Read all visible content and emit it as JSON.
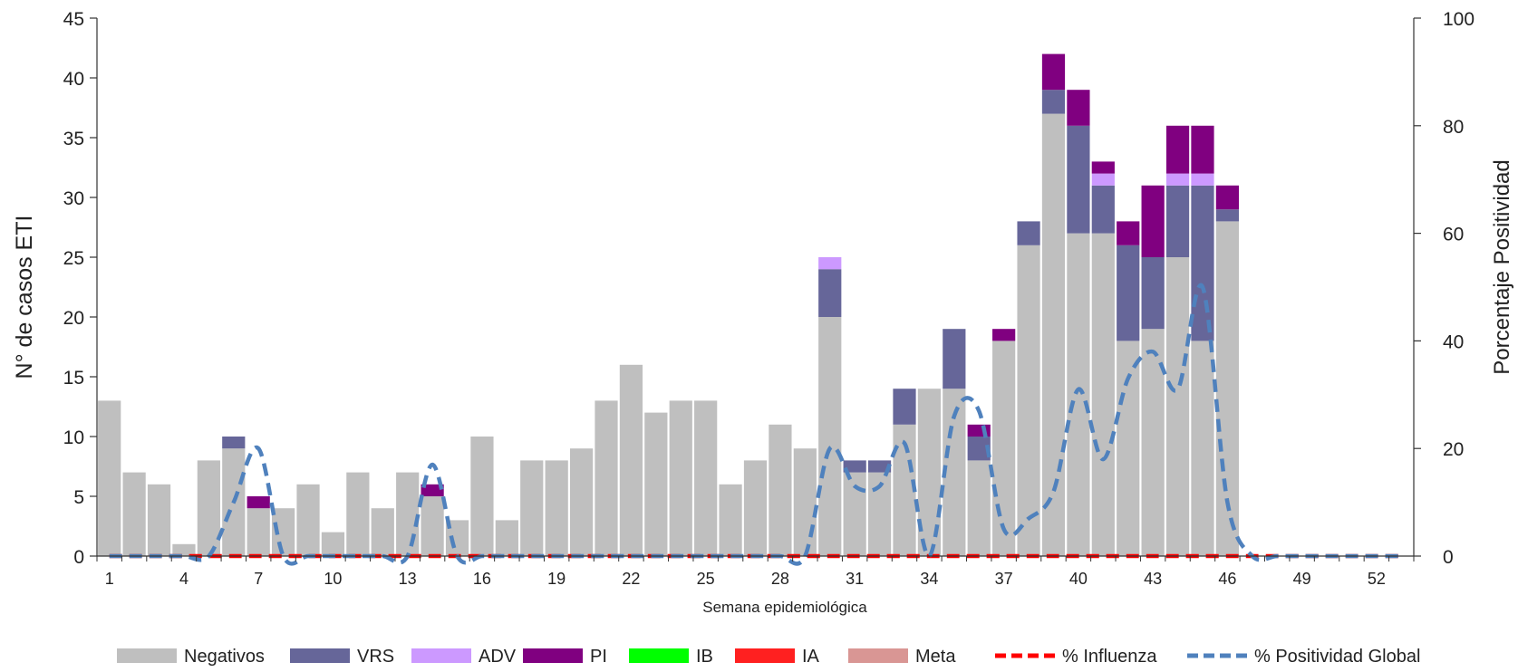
{
  "chart_data": {
    "type": "bar",
    "stacked": true,
    "x": [
      1,
      2,
      3,
      4,
      5,
      6,
      7,
      8,
      9,
      10,
      11,
      12,
      13,
      14,
      15,
      16,
      17,
      18,
      19,
      20,
      21,
      22,
      23,
      24,
      25,
      26,
      27,
      28,
      29,
      30,
      31,
      32,
      33,
      34,
      35,
      36,
      37,
      38,
      39,
      40,
      41,
      42,
      43,
      44,
      45,
      46,
      47,
      48,
      49,
      50,
      51,
      52,
      53
    ],
    "x_tick_labels": [
      "1",
      "4",
      "7",
      "10",
      "13",
      "16",
      "19",
      "22",
      "25",
      "28",
      "31",
      "34",
      "37",
      "40",
      "43",
      "46",
      "49",
      "52"
    ],
    "xlabel": "Semana epidemiológica",
    "ylabel_left": "N° de casos ETI",
    "ylabel_right": "Porcentaje  Positividad",
    "ylim_left": [
      0,
      45
    ],
    "ylim_right": [
      0,
      100
    ],
    "y_ticks_left": [
      "0",
      "5",
      "10",
      "15",
      "20",
      "25",
      "30",
      "35",
      "40",
      "45"
    ],
    "y_ticks_right": [
      "0",
      "20",
      "40",
      "60",
      "80",
      "100"
    ],
    "grid": false,
    "legend_position": "bottom",
    "series": [
      {
        "name": "Negativos",
        "kind": "bar",
        "color": "#bfbfbf",
        "values": [
          13,
          7,
          6,
          1,
          8,
          9,
          4,
          4,
          6,
          2,
          7,
          4,
          7,
          5,
          3,
          10,
          3,
          8,
          8,
          9,
          13,
          16,
          12,
          13,
          13,
          6,
          8,
          11,
          9,
          20,
          7,
          7,
          11,
          14,
          14,
          8,
          18,
          26,
          37,
          27,
          27,
          18,
          19,
          25,
          18,
          28,
          0,
          0,
          0,
          0,
          0,
          0,
          0
        ]
      },
      {
        "name": "VRS",
        "kind": "bar",
        "color": "#666699",
        "values": [
          0,
          0,
          0,
          0,
          0,
          1,
          0,
          0,
          0,
          0,
          0,
          0,
          0,
          0,
          0,
          0,
          0,
          0,
          0,
          0,
          0,
          0,
          0,
          0,
          0,
          0,
          0,
          0,
          0,
          4,
          1,
          1,
          3,
          0,
          5,
          2,
          0,
          2,
          2,
          9,
          4,
          8,
          6,
          6,
          13,
          1,
          0,
          0,
          0,
          0,
          0,
          0,
          0
        ]
      },
      {
        "name": "ADV",
        "kind": "bar",
        "color": "#cc99ff",
        "values": [
          0,
          0,
          0,
          0,
          0,
          0,
          0,
          0,
          0,
          0,
          0,
          0,
          0,
          0,
          0,
          0,
          0,
          0,
          0,
          0,
          0,
          0,
          0,
          0,
          0,
          0,
          0,
          0,
          0,
          1,
          0,
          0,
          0,
          0,
          0,
          0,
          0,
          0,
          0,
          0,
          1,
          0,
          0,
          1,
          1,
          0,
          0,
          0,
          0,
          0,
          0,
          0,
          0
        ]
      },
      {
        "name": "PI",
        "kind": "bar",
        "color": "#800080",
        "values": [
          0,
          0,
          0,
          0,
          0,
          0,
          1,
          0,
          0,
          0,
          0,
          0,
          0,
          1,
          0,
          0,
          0,
          0,
          0,
          0,
          0,
          0,
          0,
          0,
          0,
          0,
          0,
          0,
          0,
          0,
          0,
          0,
          0,
          0,
          0,
          1,
          1,
          0,
          3,
          3,
          1,
          2,
          6,
          4,
          4,
          2,
          0,
          0,
          0,
          0,
          0,
          0,
          0
        ]
      },
      {
        "name": "IB",
        "kind": "bar",
        "color": "#00ff00",
        "values": [
          0,
          0,
          0,
          0,
          0,
          0,
          0,
          0,
          0,
          0,
          0,
          0,
          0,
          0,
          0,
          0,
          0,
          0,
          0,
          0,
          0,
          0,
          0,
          0,
          0,
          0,
          0,
          0,
          0,
          0,
          0,
          0,
          0,
          0,
          0,
          0,
          0,
          0,
          0,
          0,
          0,
          0,
          0,
          0,
          0,
          0,
          0,
          0,
          0,
          0,
          0,
          0,
          0
        ]
      },
      {
        "name": "IA",
        "kind": "bar",
        "color": "#ff2020",
        "values": [
          0,
          0,
          0,
          0,
          0,
          0,
          0,
          0,
          0,
          0,
          0,
          0,
          0,
          0,
          0,
          0,
          0,
          0,
          0,
          0,
          0,
          0,
          0,
          0,
          0,
          0,
          0,
          0,
          0,
          0,
          0,
          0,
          0,
          0,
          0,
          0,
          0,
          0,
          0,
          0,
          0,
          0,
          0,
          0,
          0,
          0,
          0,
          0,
          0,
          0,
          0,
          0,
          0
        ]
      },
      {
        "name": "Meta",
        "kind": "bar",
        "color": "#d99694",
        "values": [
          0,
          0,
          0,
          0,
          0,
          0,
          0,
          0,
          0,
          0,
          0,
          0,
          0,
          0,
          0,
          0,
          0,
          0,
          0,
          0,
          0,
          0,
          0,
          0,
          0,
          0,
          0,
          0,
          0,
          0,
          0,
          0,
          0,
          0,
          0,
          0,
          0,
          0,
          0,
          0,
          0,
          0,
          0,
          0,
          0,
          0,
          0,
          0,
          0,
          0,
          0,
          0,
          0
        ]
      },
      {
        "name": "% Influenza",
        "kind": "line",
        "axis": "right",
        "dash": true,
        "color": "#ff0000",
        "values": [
          0,
          0,
          0,
          0,
          0,
          0,
          0,
          0,
          0,
          0,
          0,
          0,
          0,
          0,
          0,
          0,
          0,
          0,
          0,
          0,
          0,
          0,
          0,
          0,
          0,
          0,
          0,
          0,
          0,
          0,
          0,
          0,
          0,
          0,
          0,
          0,
          0,
          0,
          0,
          0,
          0,
          0,
          0,
          0,
          0,
          0,
          0,
          0,
          0,
          0,
          0,
          0,
          0
        ]
      },
      {
        "name": "% Positividad Global",
        "kind": "line",
        "axis": "right",
        "dash": true,
        "color": "#4f81bd",
        "values": [
          0,
          0,
          0,
          0,
          0,
          10,
          20,
          0,
          0,
          0,
          0,
          0,
          0,
          17,
          0,
          0,
          0,
          0,
          0,
          0,
          0,
          0,
          0,
          0,
          0,
          0,
          0,
          0,
          0,
          20,
          13,
          13,
          21,
          0,
          26,
          27,
          5,
          7,
          12,
          31,
          18,
          33,
          38,
          31,
          50,
          10,
          0,
          0,
          0,
          0,
          0,
          0,
          0
        ]
      }
    ]
  }
}
